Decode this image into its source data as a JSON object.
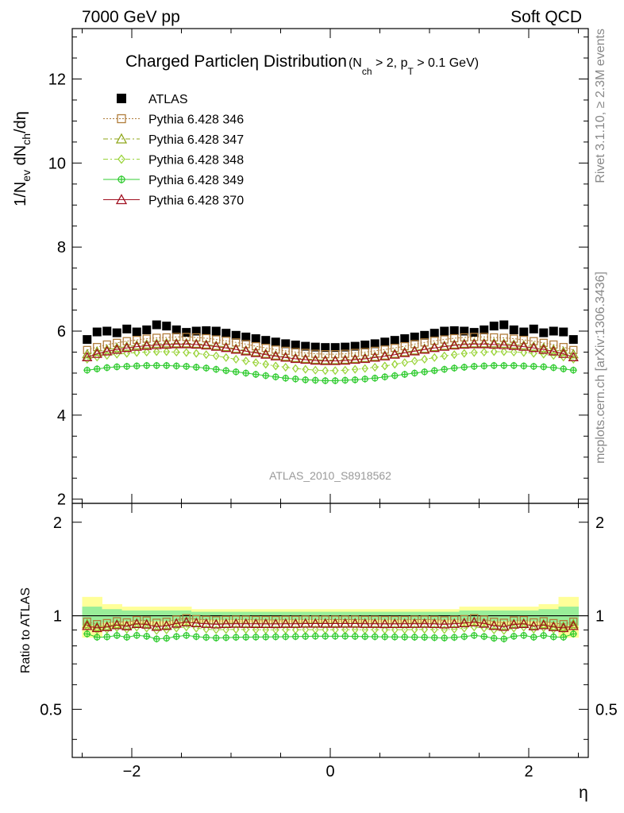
{
  "header": {
    "left": "7000 GeV pp",
    "right": "Soft QCD"
  },
  "side_labels": {
    "rivet": "Rivet 3.1.10, ≥ 2.3M events",
    "mcplots": "mcplots.cern.ch [arXiv:1306.3436]"
  },
  "watermark": "ATLAS_2010_S8918562",
  "chart_data": [
    {
      "type": "scatter",
      "title_main": "Charged Particleη Distribution",
      "title_cut": "(N",
      "title_cut_sub1": "ch",
      "title_cut_mid": " > 2, p",
      "title_cut_sub2": "T",
      "title_cut_end": " > 0.1 GeV)",
      "ylabel_parts": [
        "1/N",
        "ev",
        " dN",
        "ch",
        "/dη"
      ],
      "xlabel": "η",
      "xlim": [
        -2.6,
        2.6
      ],
      "ylim": [
        1.9,
        13.2
      ],
      "yticks": [
        2,
        4,
        6,
        8,
        10,
        12
      ],
      "legend_position": "top-left",
      "x": [
        -2.45,
        -2.35,
        -2.25,
        -2.15,
        -2.05,
        -1.95,
        -1.85,
        -1.75,
        -1.65,
        -1.55,
        -1.45,
        -1.35,
        -1.25,
        -1.15,
        -1.05,
        -0.95,
        -0.85,
        -0.75,
        -0.65,
        -0.55,
        -0.45,
        -0.35,
        -0.25,
        -0.15,
        -0.05,
        0.05,
        0.15,
        0.25,
        0.35,
        0.45,
        0.55,
        0.65,
        0.75,
        0.85,
        0.95,
        1.05,
        1.15,
        1.25,
        1.35,
        1.45,
        1.55,
        1.65,
        1.75,
        1.85,
        1.95,
        2.05,
        2.15,
        2.25,
        2.35,
        2.45
      ],
      "series": [
        {
          "name": "ATLAS",
          "color": "#000000",
          "marker": "square-filled",
          "values": [
            5.8,
            5.98,
            6.0,
            5.96,
            6.05,
            5.98,
            6.03,
            6.15,
            6.12,
            6.03,
            5.97,
            6.0,
            6.01,
            6.0,
            5.95,
            5.9,
            5.86,
            5.82,
            5.78,
            5.74,
            5.7,
            5.67,
            5.64,
            5.62,
            5.61,
            5.61,
            5.62,
            5.64,
            5.67,
            5.7,
            5.74,
            5.78,
            5.82,
            5.86,
            5.9,
            5.95,
            6.0,
            6.01,
            6.0,
            5.97,
            6.03,
            6.12,
            6.15,
            6.03,
            5.98,
            6.05,
            5.96,
            6.0,
            5.98,
            5.8
          ]
        },
        {
          "name": "Pythia 6.428 346",
          "color": "#b07c3a",
          "marker": "square-open",
          "values": [
            5.55,
            5.62,
            5.68,
            5.72,
            5.76,
            5.79,
            5.82,
            5.84,
            5.85,
            5.86,
            5.86,
            5.85,
            5.83,
            5.8,
            5.77,
            5.73,
            5.69,
            5.64,
            5.6,
            5.56,
            5.53,
            5.5,
            5.48,
            5.46,
            5.45,
            5.45,
            5.46,
            5.48,
            5.5,
            5.53,
            5.56,
            5.6,
            5.64,
            5.69,
            5.73,
            5.77,
            5.8,
            5.83,
            5.85,
            5.86,
            5.86,
            5.85,
            5.84,
            5.82,
            5.79,
            5.76,
            5.72,
            5.68,
            5.62,
            5.55
          ]
        },
        {
          "name": "Pythia 6.428 347",
          "color": "#8fa61a",
          "marker": "triangle-open",
          "values": [
            5.45,
            5.51,
            5.56,
            5.6,
            5.63,
            5.66,
            5.68,
            5.7,
            5.71,
            5.71,
            5.71,
            5.7,
            5.68,
            5.65,
            5.62,
            5.58,
            5.54,
            5.5,
            5.46,
            5.42,
            5.39,
            5.36,
            5.34,
            5.32,
            5.31,
            5.31,
            5.32,
            5.34,
            5.36,
            5.39,
            5.42,
            5.46,
            5.5,
            5.54,
            5.58,
            5.62,
            5.65,
            5.68,
            5.7,
            5.71,
            5.71,
            5.71,
            5.7,
            5.68,
            5.66,
            5.63,
            5.6,
            5.56,
            5.51,
            5.45
          ]
        },
        {
          "name": "Pythia 6.428 348",
          "color": "#9ad43a",
          "marker": "diamond-open",
          "values": [
            5.33,
            5.38,
            5.42,
            5.45,
            5.47,
            5.49,
            5.5,
            5.51,
            5.51,
            5.5,
            5.49,
            5.47,
            5.44,
            5.41,
            5.37,
            5.33,
            5.29,
            5.25,
            5.21,
            5.17,
            5.14,
            5.11,
            5.09,
            5.07,
            5.06,
            5.06,
            5.07,
            5.09,
            5.11,
            5.14,
            5.17,
            5.21,
            5.25,
            5.29,
            5.33,
            5.37,
            5.41,
            5.44,
            5.47,
            5.49,
            5.5,
            5.51,
            5.51,
            5.5,
            5.49,
            5.47,
            5.45,
            5.42,
            5.38,
            5.33
          ]
        },
        {
          "name": "Pythia 6.428 349",
          "color": "#33cc33",
          "marker": "circle-cross",
          "values": [
            5.07,
            5.1,
            5.13,
            5.15,
            5.16,
            5.17,
            5.18,
            5.18,
            5.18,
            5.17,
            5.16,
            5.14,
            5.12,
            5.09,
            5.06,
            5.03,
            5.0,
            4.97,
            4.94,
            4.91,
            4.88,
            4.86,
            4.84,
            4.83,
            4.82,
            4.82,
            4.83,
            4.84,
            4.86,
            4.88,
            4.91,
            4.94,
            4.97,
            5.0,
            5.03,
            5.06,
            5.09,
            5.12,
            5.14,
            5.16,
            5.17,
            5.18,
            5.18,
            5.18,
            5.17,
            5.16,
            5.15,
            5.13,
            5.1,
            5.07
          ]
        },
        {
          "name": "Pythia 6.428 370",
          "color": "#a01020",
          "marker": "triangle-open",
          "values": [
            5.38,
            5.46,
            5.52,
            5.56,
            5.6,
            5.63,
            5.65,
            5.67,
            5.68,
            5.69,
            5.69,
            5.68,
            5.66,
            5.63,
            5.6,
            5.56,
            5.52,
            5.48,
            5.44,
            5.4,
            5.37,
            5.34,
            5.32,
            5.3,
            5.29,
            5.29,
            5.3,
            5.32,
            5.34,
            5.37,
            5.4,
            5.44,
            5.48,
            5.52,
            5.56,
            5.6,
            5.63,
            5.66,
            5.68,
            5.69,
            5.69,
            5.68,
            5.67,
            5.65,
            5.63,
            5.6,
            5.56,
            5.52,
            5.46,
            5.38
          ]
        }
      ]
    },
    {
      "type": "scatter",
      "ylabel": "Ratio to ATLAS",
      "xlabel": "η",
      "xlim": [
        -2.6,
        2.6
      ],
      "ylim": [
        0.35,
        2.3
      ],
      "yticks": [
        0.5,
        1,
        2
      ],
      "ytick_labels": [
        "0.5",
        "1",
        "2"
      ],
      "xticks": [
        -2,
        0,
        2
      ],
      "xtick_labels": [
        "−2",
        "0",
        "2"
      ],
      "band_outer": [
        0.15,
        0.15,
        0.09,
        0.09,
        0.07,
        0.07,
        0.07,
        0.07,
        0.07,
        0.07,
        0.07,
        0.05,
        0.05,
        0.05,
        0.05,
        0.05,
        0.05,
        0.05,
        0.05,
        0.05,
        0.05,
        0.05,
        0.05,
        0.05,
        0.05,
        0.05,
        0.05,
        0.05,
        0.05,
        0.05,
        0.05,
        0.05,
        0.05,
        0.05,
        0.05,
        0.05,
        0.05,
        0.05,
        0.07,
        0.07,
        0.07,
        0.07,
        0.07,
        0.07,
        0.07,
        0.07,
        0.09,
        0.09,
        0.15,
        0.15
      ],
      "band_inner": [
        0.07,
        0.07,
        0.05,
        0.05,
        0.04,
        0.04,
        0.04,
        0.04,
        0.04,
        0.04,
        0.04,
        0.03,
        0.03,
        0.03,
        0.03,
        0.03,
        0.03,
        0.03,
        0.03,
        0.03,
        0.03,
        0.03,
        0.03,
        0.03,
        0.03,
        0.03,
        0.03,
        0.03,
        0.03,
        0.03,
        0.03,
        0.03,
        0.03,
        0.03,
        0.03,
        0.03,
        0.03,
        0.03,
        0.04,
        0.04,
        0.04,
        0.04,
        0.04,
        0.04,
        0.04,
        0.04,
        0.05,
        0.05,
        0.07,
        0.07
      ]
    }
  ]
}
